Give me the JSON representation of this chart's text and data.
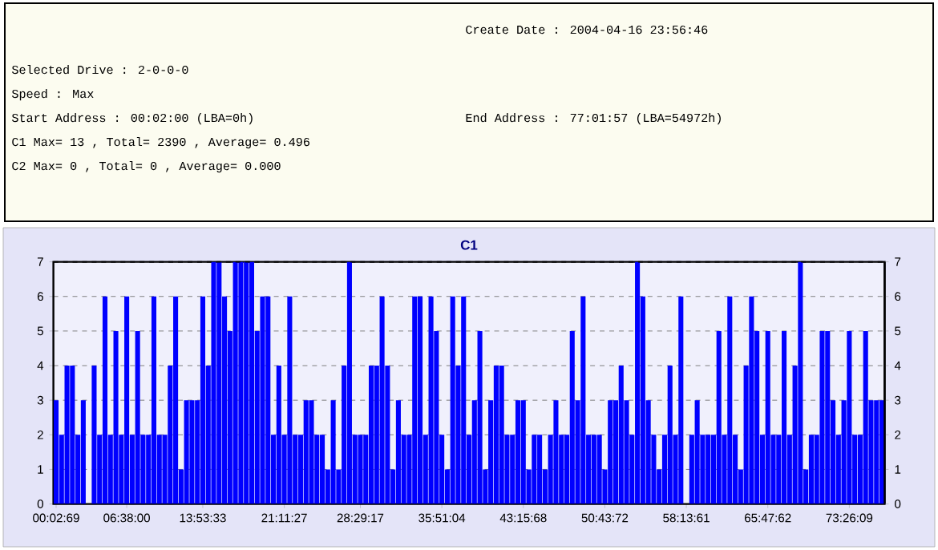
{
  "chart_data": [
    {
      "type": "other",
      "annotations": [
        "Create Date : 2004-04-16 23:56:46",
        "Selected Drive : 2-0-0-0",
        "Speed : Max",
        "Start Address : 00:02:00 (LBA=0h)",
        "End Address : 77:01:57 (LBA=54972h)",
        "C1 Max= 13 , Total= 2390 , Average= 0.496",
        "C2 Max= 0 , Total= 0 , Average= 0.000"
      ]
    },
    {
      "type": "bar",
      "title": "C1",
      "color": "#0000ff",
      "grid": "y",
      "categories": [
        "00:02:69",
        null,
        null,
        null,
        null,
        null,
        null,
        null,
        null,
        null,
        null,
        null,
        null,
        "06:38:00",
        null,
        null,
        null,
        null,
        null,
        null,
        null,
        null,
        null,
        null,
        null,
        null,
        null,
        "13:53:33",
        null,
        null,
        null,
        null,
        null,
        null,
        null,
        null,
        null,
        null,
        null,
        null,
        null,
        null,
        "21:11:27",
        null,
        null,
        null,
        null,
        null,
        null,
        null,
        null,
        null,
        null,
        null,
        null,
        null,
        "28:29:17",
        null,
        null,
        null,
        null,
        null,
        null,
        null,
        null,
        null,
        null,
        null,
        null,
        null,
        null,
        "35:51:04",
        null,
        null,
        null,
        null,
        null,
        null,
        null,
        null,
        null,
        null,
        null,
        null,
        null,
        null,
        "43:15:68",
        null,
        null,
        null,
        null,
        null,
        null,
        null,
        null,
        null,
        null,
        null,
        null,
        null,
        null,
        "50:43:72",
        null,
        null,
        null,
        null,
        null,
        null,
        null,
        null,
        null,
        null,
        null,
        null,
        null,
        null,
        "58:13:61",
        null,
        null,
        null,
        null,
        null,
        null,
        null,
        null,
        null,
        null,
        null,
        null,
        null,
        null,
        "65:47:62",
        null,
        null,
        null,
        null,
        null,
        null,
        null,
        null,
        null,
        null,
        null,
        null,
        null,
        null,
        "73:26:09",
        null,
        null,
        null,
        null,
        null,
        null
      ],
      "values": [
        3,
        2,
        4,
        4,
        2,
        3,
        0,
        4,
        2,
        6,
        2,
        5,
        2,
        6,
        2,
        5,
        2,
        2,
        6,
        2,
        2,
        4,
        6,
        1,
        3,
        3,
        3,
        6,
        4,
        7,
        7,
        6,
        5,
        7,
        7,
        7,
        7,
        5,
        6,
        6,
        2,
        4,
        2,
        6,
        2,
        2,
        3,
        3,
        2,
        2,
        1,
        3,
        1,
        4,
        7,
        2,
        2,
        2,
        4,
        4,
        6,
        4,
        1,
        3,
        2,
        2,
        6,
        6,
        2,
        6,
        5,
        2,
        1,
        6,
        4,
        6,
        2,
        3,
        5,
        1,
        3,
        4,
        4,
        2,
        2,
        3,
        3,
        1,
        2,
        2,
        1,
        2,
        3,
        2,
        2,
        5,
        3,
        6,
        2,
        2,
        2,
        1,
        3,
        3,
        4,
        3,
        2,
        7,
        6,
        3,
        2,
        1,
        2,
        4,
        2,
        6,
        0,
        2,
        3,
        2,
        2,
        2,
        5,
        2,
        6,
        2,
        1,
        4,
        6,
        5,
        2,
        5,
        2,
        2,
        5,
        2,
        4,
        7,
        1,
        2,
        2,
        5,
        5,
        3,
        2,
        3,
        5,
        2,
        2,
        5,
        3,
        3,
        3
      ],
      "ylim": [
        0,
        7
      ],
      "yticks": [
        0,
        1,
        2,
        3,
        4,
        5,
        6,
        7
      ],
      "y2lim": [
        0,
        7
      ],
      "y2ticks": [
        0,
        1,
        2,
        3,
        4,
        5,
        6,
        7
      ]
    }
  ]
}
